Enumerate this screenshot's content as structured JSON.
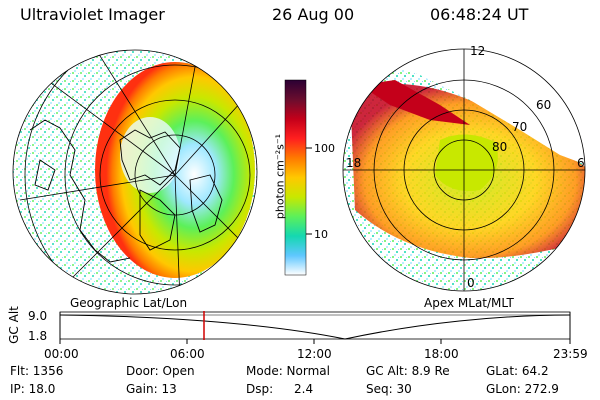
{
  "header": {
    "title": "Ultraviolet Imager",
    "date": "26 Aug 00",
    "time": "06:48:24 UT"
  },
  "colorbar": {
    "unit_label": "photon cm⁻²s⁻¹",
    "ticks": [
      "100",
      "10"
    ],
    "stops": [
      "#2b0034",
      "#6a0d2e",
      "#c4001a",
      "#ff1f1f",
      "#ff7a00",
      "#ffc800",
      "#c8e800",
      "#5cf05a",
      "#14d8b0",
      "#5fc7ff",
      "#ffffff"
    ]
  },
  "left_panel": {
    "label": "Geographic Lat/Lon"
  },
  "right_panel": {
    "label": "Apex MLat/MLT",
    "mlt_labels": {
      "top": "12",
      "right": "6",
      "left": "18",
      "bottom": "0"
    },
    "lat_labels": [
      "60",
      "70",
      "80"
    ]
  },
  "timeline": {
    "axis_title": "GC Alt",
    "yticks": [
      "9.0",
      "1.8"
    ],
    "xticks": [
      "00:00",
      "06:00",
      "12:00",
      "18:00",
      "23:59"
    ],
    "marker_time": "06:48",
    "marker_color": "#d00000"
  },
  "status": {
    "row1": [
      "Flt: 1356",
      "Door: Open",
      "Mode: Normal",
      "GC Alt: 8.9 Re",
      "GLat: 64.2"
    ],
    "row2": [
      "IP: 18.0",
      "Gain: 13",
      "Dsp:",
      "2.4",
      "Seq: 30",
      "GLon: 272.9"
    ]
  }
}
